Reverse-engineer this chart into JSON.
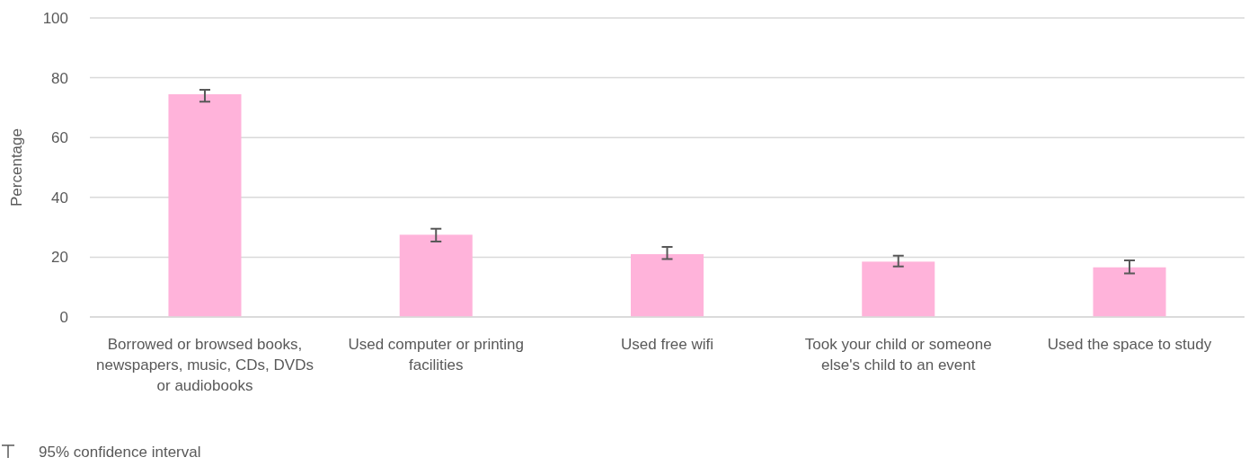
{
  "chart_data": {
    "type": "bar",
    "ylabel": "Percentage",
    "categories": [
      "Borrowed or browsed books, newspapers, music, CDs, DVDs or audiobooks",
      "Used computer or printing facilities",
      "Used free wifi",
      "Took your child or someone else's child to an event",
      "Used the space to study"
    ],
    "values": [
      74.5,
      27.5,
      21,
      18.5,
      16.6
    ],
    "errors": [
      [
        72,
        76
      ],
      [
        25.2,
        29.5
      ],
      [
        19.4,
        23.4
      ],
      [
        16.9,
        20.5
      ],
      [
        14.6,
        18.9
      ]
    ],
    "color": "#ffb3da",
    "ylim": [
      0,
      100
    ],
    "yticks": [
      0,
      20,
      40,
      60,
      80,
      100
    ],
    "grid": "y",
    "annotations": [
      "95% confidence interval"
    ]
  }
}
